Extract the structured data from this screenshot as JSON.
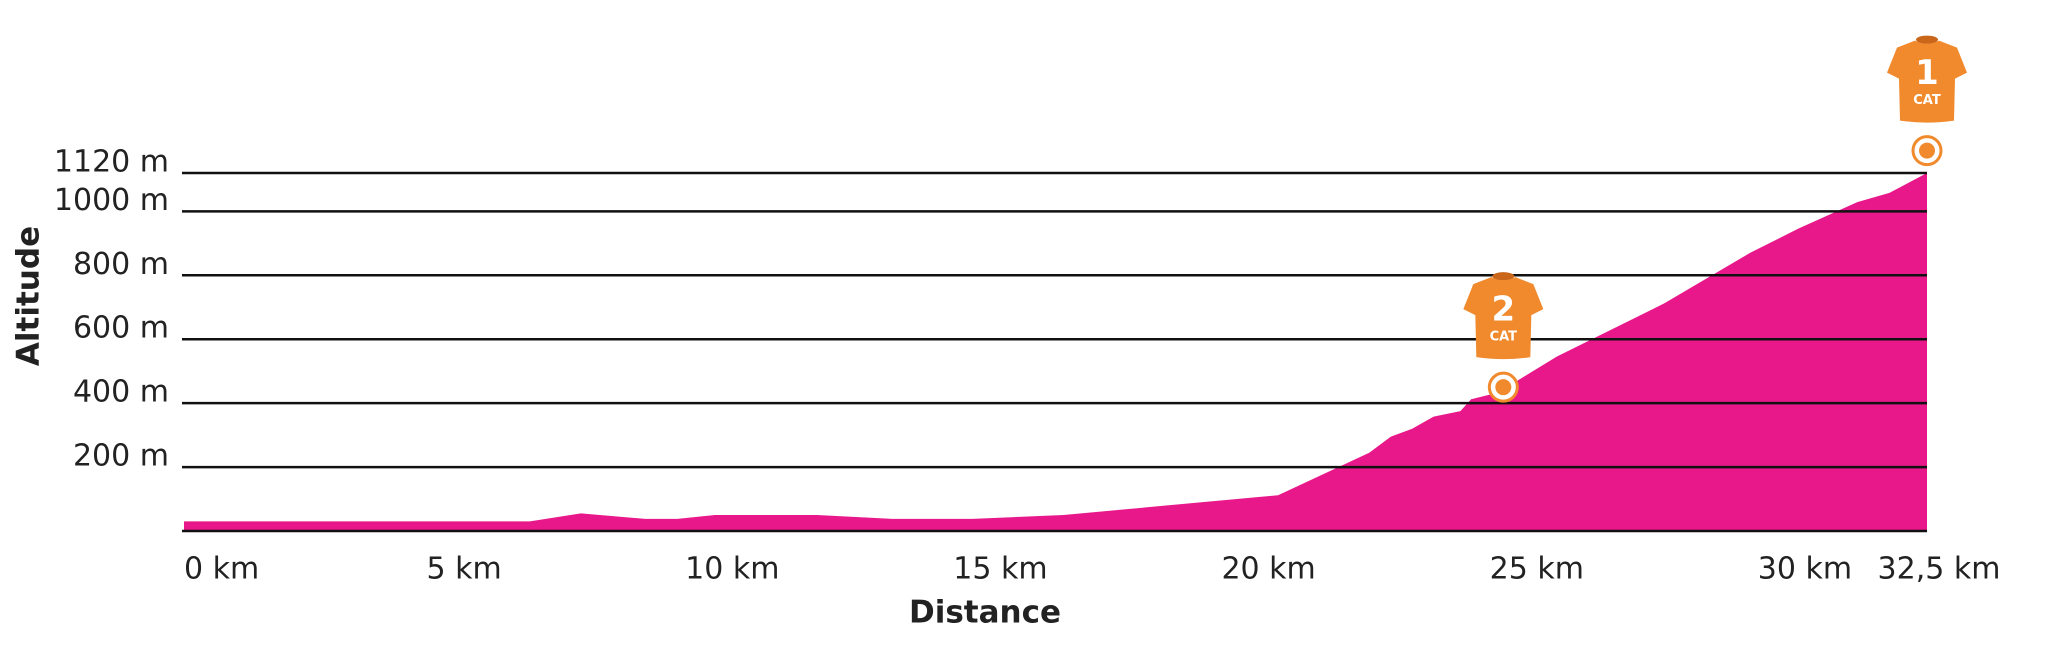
{
  "chart_data": {
    "type": "area",
    "x_label": "Distance",
    "y_label": "Altitude",
    "x": [
      0,
      6.45,
      7.4,
      8.6,
      9.2,
      9.9,
      11.8,
      13.2,
      14.7,
      16.4,
      20.4,
      22.1,
      22.5,
      22.9,
      23.3,
      23.8,
      24.0,
      24.5,
      25.6,
      27.6,
      29.2,
      30.1,
      31.2,
      31.8,
      32.5
    ],
    "values": [
      30,
      30,
      55,
      38,
      38,
      50,
      50,
      38,
      38,
      50,
      112,
      245,
      295,
      320,
      358,
      375,
      412,
      433,
      546,
      712,
      870,
      946,
      1029,
      1058,
      1120
    ],
    "color": "#e8178a",
    "xlim": [
      0,
      32.5
    ],
    "xticks": [
      {
        "value": 0,
        "label": "0 km"
      },
      {
        "value": 5,
        "label": "5 km"
      },
      {
        "value": 10,
        "label": "10 km"
      },
      {
        "value": 15,
        "label": "15 km"
      },
      {
        "value": 20,
        "label": "20 km"
      },
      {
        "value": 25,
        "label": "25 km"
      },
      {
        "value": 30,
        "label": "30 km"
      },
      {
        "value": 32.5,
        "label": "32,5 km"
      }
    ],
    "ylim": [
      0,
      1120
    ],
    "yticks": [
      {
        "value": 200,
        "label": "200 m"
      },
      {
        "value": 400,
        "label": "400 m"
      },
      {
        "value": 600,
        "label": "600 m"
      },
      {
        "value": 800,
        "label": "800 m"
      },
      {
        "value": 1000,
        "label": "1000 m"
      },
      {
        "value": 1120,
        "label": "1120 m"
      }
    ],
    "grid": true,
    "climbs": [
      {
        "number": "2",
        "category": "CAT",
        "km": 24.6,
        "altitude": 450,
        "color": "#f08a2c"
      },
      {
        "number": "1",
        "category": "CAT",
        "km": 32.5,
        "altitude": 1190,
        "color": "#f08a2c"
      }
    ]
  }
}
